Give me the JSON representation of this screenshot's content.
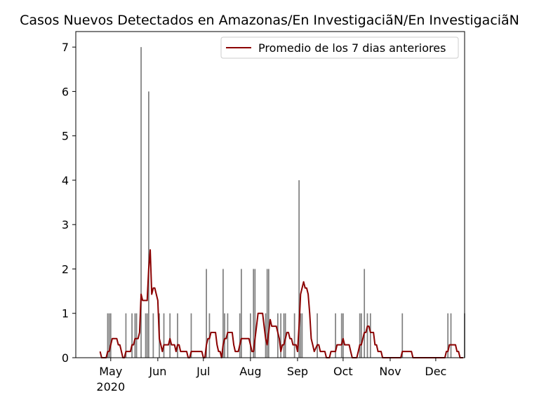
{
  "chart_data": {
    "type": "bar",
    "title": "Casos Nuevos Detectados en Amazonas/En Investigaciã\u001fN/En Investigaciã\u001fN",
    "xlabel": "",
    "ylabel": "",
    "ylim": [
      0,
      7.35
    ],
    "xlim": [
      "2020-04-08",
      "2020-12-20"
    ],
    "x_ticks": [
      {
        "date": "2020-05-01",
        "label": "May",
        "sublabel": "2020"
      },
      {
        "date": "2020-06-01",
        "label": "Jun",
        "sublabel": ""
      },
      {
        "date": "2020-07-01",
        "label": "Jul",
        "sublabel": ""
      },
      {
        "date": "2020-08-01",
        "label": "Aug",
        "sublabel": ""
      },
      {
        "date": "2020-09-01",
        "label": "Sep",
        "sublabel": ""
      },
      {
        "date": "2020-10-01",
        "label": "Oct",
        "sublabel": ""
      },
      {
        "date": "2020-11-01",
        "label": "Nov",
        "sublabel": ""
      },
      {
        "date": "2020-12-01",
        "label": "Dec",
        "sublabel": ""
      }
    ],
    "y_ticks": [
      0,
      1,
      2,
      3,
      4,
      5,
      6,
      7
    ],
    "legend": {
      "position": "top-right",
      "entries": [
        "Promedio de los 7 dias anteriores"
      ]
    },
    "bar_color": "#808080",
    "line_color": "#8b0000",
    "series": [
      {
        "type": "bar",
        "points": [
          [
            "2020-04-29",
            1
          ],
          [
            "2020-04-30",
            1
          ],
          [
            "2020-05-01",
            1
          ],
          [
            "2020-05-11",
            1
          ],
          [
            "2020-05-15",
            1
          ],
          [
            "2020-05-17",
            1
          ],
          [
            "2020-05-18",
            1
          ],
          [
            "2020-05-21",
            7
          ],
          [
            "2020-05-24",
            1
          ],
          [
            "2020-05-25",
            1
          ],
          [
            "2020-05-26",
            6
          ],
          [
            "2020-05-29",
            1
          ],
          [
            "2020-06-02",
            1
          ],
          [
            "2020-06-05",
            1
          ],
          [
            "2020-06-09",
            1
          ],
          [
            "2020-06-14",
            1
          ],
          [
            "2020-06-23",
            1
          ],
          [
            "2020-07-03",
            2
          ],
          [
            "2020-07-05",
            1
          ],
          [
            "2020-07-14",
            2
          ],
          [
            "2020-07-15",
            1
          ],
          [
            "2020-07-17",
            1
          ],
          [
            "2020-07-25",
            1
          ],
          [
            "2020-07-26",
            2
          ],
          [
            "2020-08-01",
            1
          ],
          [
            "2020-08-03",
            2
          ],
          [
            "2020-08-04",
            2
          ],
          [
            "2020-08-11",
            1
          ],
          [
            "2020-08-12",
            2
          ],
          [
            "2020-08-13",
            2
          ],
          [
            "2020-08-19",
            1
          ],
          [
            "2020-08-21",
            1
          ],
          [
            "2020-08-23",
            1
          ],
          [
            "2020-08-24",
            1
          ],
          [
            "2020-08-30",
            1
          ],
          [
            "2020-09-02",
            4
          ],
          [
            "2020-09-03",
            1
          ],
          [
            "2020-09-04",
            1
          ],
          [
            "2020-09-14",
            1
          ],
          [
            "2020-09-26",
            1
          ],
          [
            "2020-09-30",
            1
          ],
          [
            "2020-10-01",
            1
          ],
          [
            "2020-10-12",
            1
          ],
          [
            "2020-10-13",
            1
          ],
          [
            "2020-10-15",
            2
          ],
          [
            "2020-10-17",
            1
          ],
          [
            "2020-10-19",
            1
          ],
          [
            "2020-11-09",
            1
          ],
          [
            "2020-12-09",
            1
          ],
          [
            "2020-12-11",
            1
          ],
          [
            "2020-12-20",
            1
          ]
        ]
      },
      {
        "type": "line",
        "name": "Promedio de los 7 dias anteriores",
        "points": [
          [
            "2020-04-24",
            0.14
          ],
          [
            "2020-04-25",
            0
          ],
          [
            "2020-04-28",
            0
          ],
          [
            "2020-04-29",
            0.14
          ],
          [
            "2020-04-30",
            0.14
          ],
          [
            "2020-05-01",
            0.29
          ],
          [
            "2020-05-02",
            0.43
          ],
          [
            "2020-05-05",
            0.43
          ],
          [
            "2020-05-06",
            0.29
          ],
          [
            "2020-05-07",
            0.29
          ],
          [
            "2020-05-09",
            0
          ],
          [
            "2020-05-10",
            0
          ],
          [
            "2020-05-11",
            0.14
          ],
          [
            "2020-05-14",
            0.14
          ],
          [
            "2020-05-15",
            0.29
          ],
          [
            "2020-05-16",
            0.29
          ],
          [
            "2020-05-17",
            0.43
          ],
          [
            "2020-05-19",
            0.43
          ],
          [
            "2020-05-20",
            0.57
          ],
          [
            "2020-05-21",
            1.43
          ],
          [
            "2020-05-22",
            1.29
          ],
          [
            "2020-05-25",
            1.29
          ],
          [
            "2020-05-26",
            2.0
          ],
          [
            "2020-05-27",
            2.43
          ],
          [
            "2020-05-28",
            1.43
          ],
          [
            "2020-05-29",
            1.57
          ],
          [
            "2020-05-30",
            1.57
          ],
          [
            "2020-06-01",
            1.29
          ],
          [
            "2020-06-02",
            0.43
          ],
          [
            "2020-06-03",
            0.29
          ],
          [
            "2020-06-04",
            0.14
          ],
          [
            "2020-06-05",
            0.29
          ],
          [
            "2020-06-08",
            0.29
          ],
          [
            "2020-06-09",
            0.43
          ],
          [
            "2020-06-10",
            0.29
          ],
          [
            "2020-06-12",
            0.29
          ],
          [
            "2020-06-13",
            0.14
          ],
          [
            "2020-06-14",
            0.29
          ],
          [
            "2020-06-15",
            0.29
          ],
          [
            "2020-06-16",
            0.14
          ],
          [
            "2020-06-20",
            0.14
          ],
          [
            "2020-06-21",
            0
          ],
          [
            "2020-06-22",
            0
          ],
          [
            "2020-06-23",
            0.14
          ],
          [
            "2020-06-30",
            0.14
          ],
          [
            "2020-07-01",
            0
          ],
          [
            "2020-07-02",
            0
          ],
          [
            "2020-07-03",
            0.29
          ],
          [
            "2020-07-04",
            0.43
          ],
          [
            "2020-07-05",
            0.43
          ],
          [
            "2020-07-06",
            0.57
          ],
          [
            "2020-07-09",
            0.57
          ],
          [
            "2020-07-10",
            0.29
          ],
          [
            "2020-07-11",
            0.14
          ],
          [
            "2020-07-12",
            0.14
          ],
          [
            "2020-07-13",
            0
          ],
          [
            "2020-07-14",
            0.29
          ],
          [
            "2020-07-15",
            0.43
          ],
          [
            "2020-07-16",
            0.43
          ],
          [
            "2020-07-17",
            0.57
          ],
          [
            "2020-07-20",
            0.57
          ],
          [
            "2020-07-21",
            0.29
          ],
          [
            "2020-07-22",
            0.14
          ],
          [
            "2020-07-24",
            0.14
          ],
          [
            "2020-07-25",
            0.29
          ],
          [
            "2020-07-26",
            0.43
          ],
          [
            "2020-07-31",
            0.43
          ],
          [
            "2020-08-01",
            0.29
          ],
          [
            "2020-08-02",
            0.14
          ],
          [
            "2020-08-03",
            0.14
          ],
          [
            "2020-08-04",
            0.43
          ],
          [
            "2020-08-05",
            0.71
          ],
          [
            "2020-08-06",
            1.0
          ],
          [
            "2020-08-09",
            1.0
          ],
          [
            "2020-08-10",
            0.71
          ],
          [
            "2020-08-11",
            0.43
          ],
          [
            "2020-08-12",
            0.29
          ],
          [
            "2020-08-13",
            0.57
          ],
          [
            "2020-08-14",
            0.86
          ],
          [
            "2020-08-15",
            0.71
          ],
          [
            "2020-08-18",
            0.71
          ],
          [
            "2020-08-19",
            0.57
          ],
          [
            "2020-08-20",
            0.43
          ],
          [
            "2020-08-21",
            0.14
          ],
          [
            "2020-08-22",
            0.29
          ],
          [
            "2020-08-23",
            0.29
          ],
          [
            "2020-08-24",
            0.43
          ],
          [
            "2020-08-25",
            0.57
          ],
          [
            "2020-08-26",
            0.57
          ],
          [
            "2020-08-27",
            0.43
          ],
          [
            "2020-08-28",
            0.43
          ],
          [
            "2020-08-29",
            0.29
          ],
          [
            "2020-08-31",
            0.29
          ],
          [
            "2020-09-01",
            0.14
          ],
          [
            "2020-09-02",
            0.71
          ],
          [
            "2020-09-03",
            1.43
          ],
          [
            "2020-09-05",
            1.71
          ],
          [
            "2020-09-06",
            1.57
          ],
          [
            "2020-09-07",
            1.57
          ],
          [
            "2020-09-08",
            1.43
          ],
          [
            "2020-09-09",
            1.0
          ],
          [
            "2020-09-10",
            0.43
          ],
          [
            "2020-09-11",
            0.29
          ],
          [
            "2020-09-12",
            0.14
          ],
          [
            "2020-09-14",
            0.29
          ],
          [
            "2020-09-15",
            0.29
          ],
          [
            "2020-09-16",
            0.14
          ],
          [
            "2020-09-19",
            0.14
          ],
          [
            "2020-09-20",
            0
          ],
          [
            "2020-09-22",
            0
          ],
          [
            "2020-09-23",
            0.14
          ],
          [
            "2020-09-26",
            0.14
          ],
          [
            "2020-09-27",
            0.29
          ],
          [
            "2020-09-30",
            0.29
          ],
          [
            "2020-10-01",
            0.43
          ],
          [
            "2020-10-02",
            0.29
          ],
          [
            "2020-10-05",
            0.29
          ],
          [
            "2020-10-06",
            0.14
          ],
          [
            "2020-10-07",
            0
          ],
          [
            "2020-10-10",
            0
          ],
          [
            "2020-10-11",
            0.14
          ],
          [
            "2020-10-12",
            0.29
          ],
          [
            "2020-10-13",
            0.29
          ],
          [
            "2020-10-14",
            0.43
          ],
          [
            "2020-10-15",
            0.57
          ],
          [
            "2020-10-16",
            0.57
          ],
          [
            "2020-10-17",
            0.71
          ],
          [
            "2020-10-18",
            0.71
          ],
          [
            "2020-10-19",
            0.57
          ],
          [
            "2020-10-21",
            0.57
          ],
          [
            "2020-10-22",
            0.29
          ],
          [
            "2020-10-23",
            0.29
          ],
          [
            "2020-10-24",
            0.14
          ],
          [
            "2020-10-26",
            0.14
          ],
          [
            "2020-10-27",
            0
          ],
          [
            "2020-11-08",
            0
          ],
          [
            "2020-11-09",
            0.14
          ],
          [
            "2020-11-15",
            0.14
          ],
          [
            "2020-11-16",
            0
          ],
          [
            "2020-12-07",
            0
          ],
          [
            "2020-12-08",
            0.14
          ],
          [
            "2020-12-09",
            0.14
          ],
          [
            "2020-12-10",
            0.29
          ],
          [
            "2020-12-14",
            0.29
          ],
          [
            "2020-12-15",
            0.14
          ],
          [
            "2020-12-16",
            0.14
          ],
          [
            "2020-12-17",
            0
          ],
          [
            "2020-12-19",
            0
          ]
        ]
      }
    ]
  }
}
